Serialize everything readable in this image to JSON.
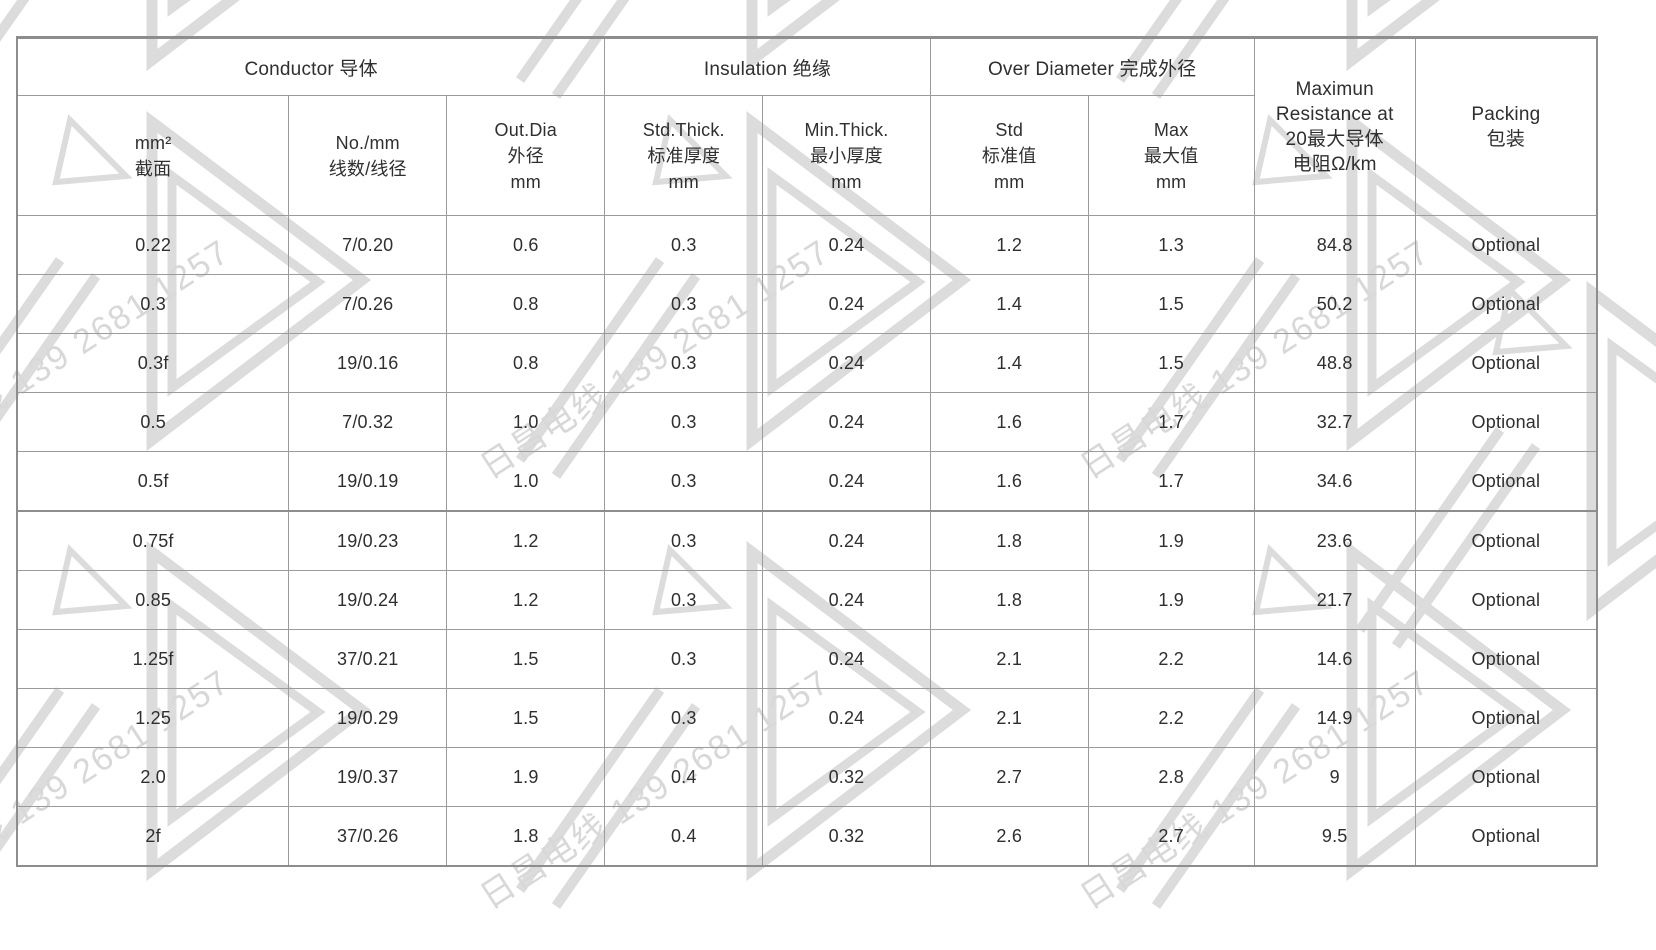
{
  "watermark": {
    "text": "日昌电线 139 2681 1257"
  },
  "colors": {
    "background": "#ffffff",
    "table_text": "#2f2f2f",
    "grid_line": "#9b9b9b",
    "heavy_line": "#8d8d8d",
    "watermark_gray": "#d8d8d8"
  },
  "table": {
    "group_headers": [
      {
        "label": "Conductor 导体",
        "colspan": 3
      },
      {
        "label": "Insulation 绝缘",
        "colspan": 2
      },
      {
        "label": "Over Diameter 完成外径",
        "colspan": 2
      }
    ],
    "resistance_header_lines": [
      "Maximun",
      "Resistance at",
      "20最大导体",
      "电阻Ω/km"
    ],
    "packing_header_lines": [
      "Packing",
      "包装"
    ],
    "sub_headers": [
      {
        "lines": [
          "mm²",
          "截面"
        ]
      },
      {
        "lines": [
          "No./mm",
          "线数/线径"
        ]
      },
      {
        "lines": [
          "Out.Dia",
          "外径",
          "mm"
        ]
      },
      {
        "lines": [
          "Std.Thick.",
          "标准厚度",
          "mm"
        ]
      },
      {
        "lines": [
          "Min.Thick.",
          "最小厚度",
          "mm"
        ]
      },
      {
        "lines": [
          "Std",
          "标准值",
          "mm"
        ]
      },
      {
        "lines": [
          "Max",
          "最大值",
          "mm"
        ]
      }
    ],
    "rows": [
      [
        "0.22",
        "7/0.20",
        "0.6",
        "0.3",
        "0.24",
        "1.2",
        "1.3",
        "84.8",
        "Optional"
      ],
      [
        "0.3",
        "7/0.26",
        "0.8",
        "0.3",
        "0.24",
        "1.4",
        "1.5",
        "50.2",
        "Optional"
      ],
      [
        "0.3f",
        "19/0.16",
        "0.8",
        "0.3",
        "0.24",
        "1.4",
        "1.5",
        "48.8",
        "Optional"
      ],
      [
        "0.5",
        "7/0.32",
        "1.0",
        "0.3",
        "0.24",
        "1.6",
        "1.7",
        "32.7",
        "Optional"
      ],
      [
        "0.5f",
        "19/0.19",
        "1.0",
        "0.3",
        "0.24",
        "1.6",
        "1.7",
        "34.6",
        "Optional"
      ],
      [
        "0.75f",
        "19/0.23",
        "1.2",
        "0.3",
        "0.24",
        "1.8",
        "1.9",
        "23.6",
        "Optional"
      ],
      [
        "0.85",
        "19/0.24",
        "1.2",
        "0.3",
        "0.24",
        "1.8",
        "1.9",
        "21.7",
        "Optional"
      ],
      [
        "1.25f",
        "37/0.21",
        "1.5",
        "0.3",
        "0.24",
        "2.1",
        "2.2",
        "14.6",
        "Optional"
      ],
      [
        "1.25",
        "19/0.29",
        "1.5",
        "0.3",
        "0.24",
        "2.1",
        "2.2",
        "14.9",
        "Optional"
      ],
      [
        "2.0",
        "19/0.37",
        "1.9",
        "0.4",
        "0.32",
        "2.7",
        "2.8",
        "9",
        "Optional"
      ],
      [
        "2f",
        "37/0.26",
        "1.8",
        "0.4",
        "0.32",
        "2.6",
        "2.7",
        "9.5",
        "Optional"
      ]
    ]
  }
}
